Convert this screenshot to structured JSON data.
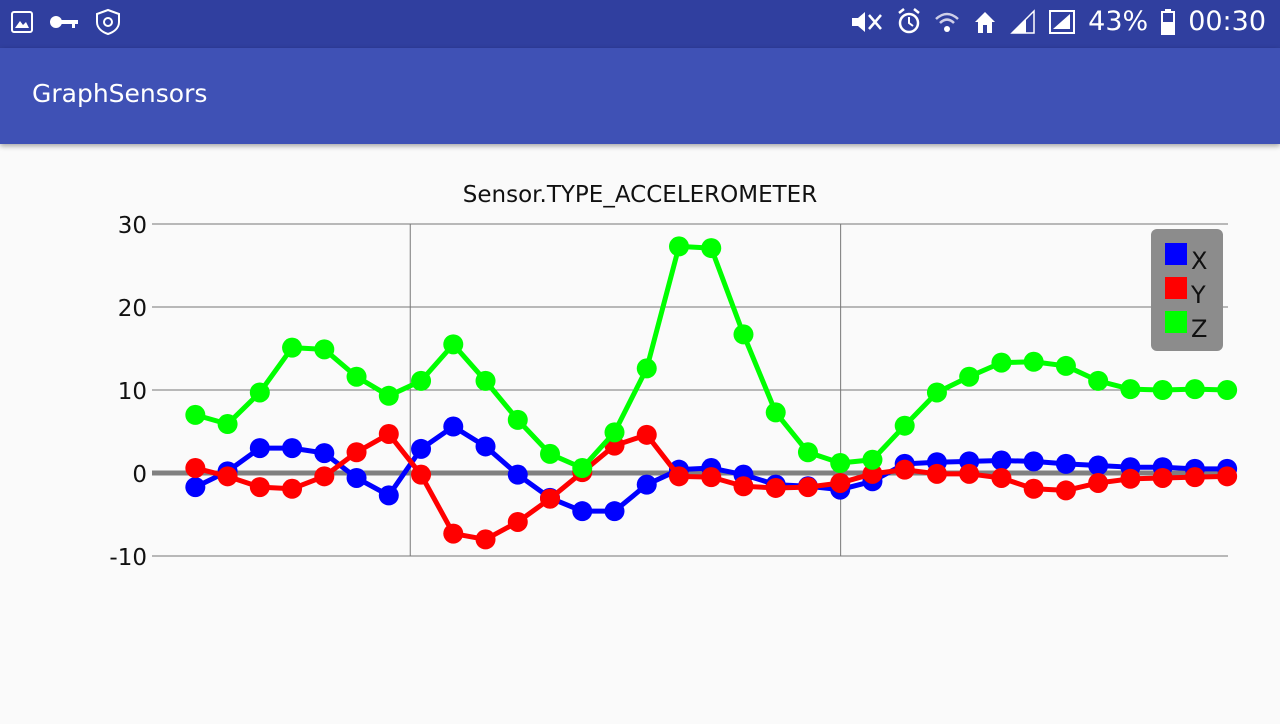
{
  "status_bar": {
    "battery": "43%",
    "time": "00:30",
    "left_icons": [
      "image-icon",
      "key-icon",
      "vpn-shield-icon"
    ],
    "right_icons": [
      "mute-icon",
      "alarm-icon",
      "wifi-icon",
      "home-icon",
      "signal-icon",
      "signal-r-icon",
      "battery-icon"
    ]
  },
  "app_bar": {
    "title": "GraphSensors"
  },
  "chart_data": {
    "type": "line",
    "title": "Sensor.TYPE_ACCELEROMETER",
    "xlabel": "",
    "ylabel": "",
    "ylim": [
      -10,
      30
    ],
    "yticks": [
      -10,
      0,
      10,
      20,
      30
    ],
    "x": [
      0,
      1,
      2,
      3,
      4,
      5,
      6,
      7,
      8,
      9,
      10,
      11,
      12,
      13,
      14,
      15,
      16,
      17,
      18,
      19,
      20,
      21,
      22,
      23,
      24,
      25,
      26,
      27,
      28,
      29,
      30,
      31,
      32
    ],
    "grid": true,
    "legend": "top-right",
    "series": [
      {
        "name": "X",
        "color": "#0000ff",
        "values": [
          -1.7,
          0.2,
          3.0,
          3.0,
          2.4,
          -0.6,
          -2.7,
          2.9,
          5.6,
          3.2,
          -0.2,
          -3.0,
          -4.6,
          -4.6,
          -1.4,
          0.4,
          0.6,
          -0.2,
          -1.4,
          -1.6,
          -2.0,
          -1.0,
          1.1,
          1.3,
          1.4,
          1.5,
          1.4,
          1.1,
          0.9,
          0.7,
          0.7,
          0.5,
          0.5
        ]
      },
      {
        "name": "Y",
        "color": "#ff0000",
        "values": [
          0.6,
          -0.4,
          -1.7,
          -1.9,
          -0.4,
          2.5,
          4.7,
          -0.2,
          -7.3,
          -8.0,
          -5.9,
          -3.1,
          0.1,
          3.3,
          4.6,
          -0.4,
          -0.5,
          -1.6,
          -1.8,
          -1.7,
          -1.2,
          -0.1,
          0.4,
          -0.1,
          -0.1,
          -0.6,
          -1.9,
          -2.1,
          -1.2,
          -0.7,
          -0.6,
          -0.5,
          -0.4
        ]
      },
      {
        "name": "Z",
        "color": "#00ff00",
        "values": [
          7.0,
          5.9,
          9.7,
          15.1,
          14.9,
          11.6,
          9.3,
          11.1,
          15.5,
          11.1,
          6.4,
          2.3,
          0.6,
          4.9,
          12.6,
          27.3,
          27.1,
          16.7,
          7.3,
          2.5,
          1.2,
          1.6,
          5.7,
          9.7,
          11.6,
          13.3,
          13.4,
          12.9,
          11.1,
          10.1,
          10.0,
          10.1,
          10.0
        ]
      }
    ]
  }
}
